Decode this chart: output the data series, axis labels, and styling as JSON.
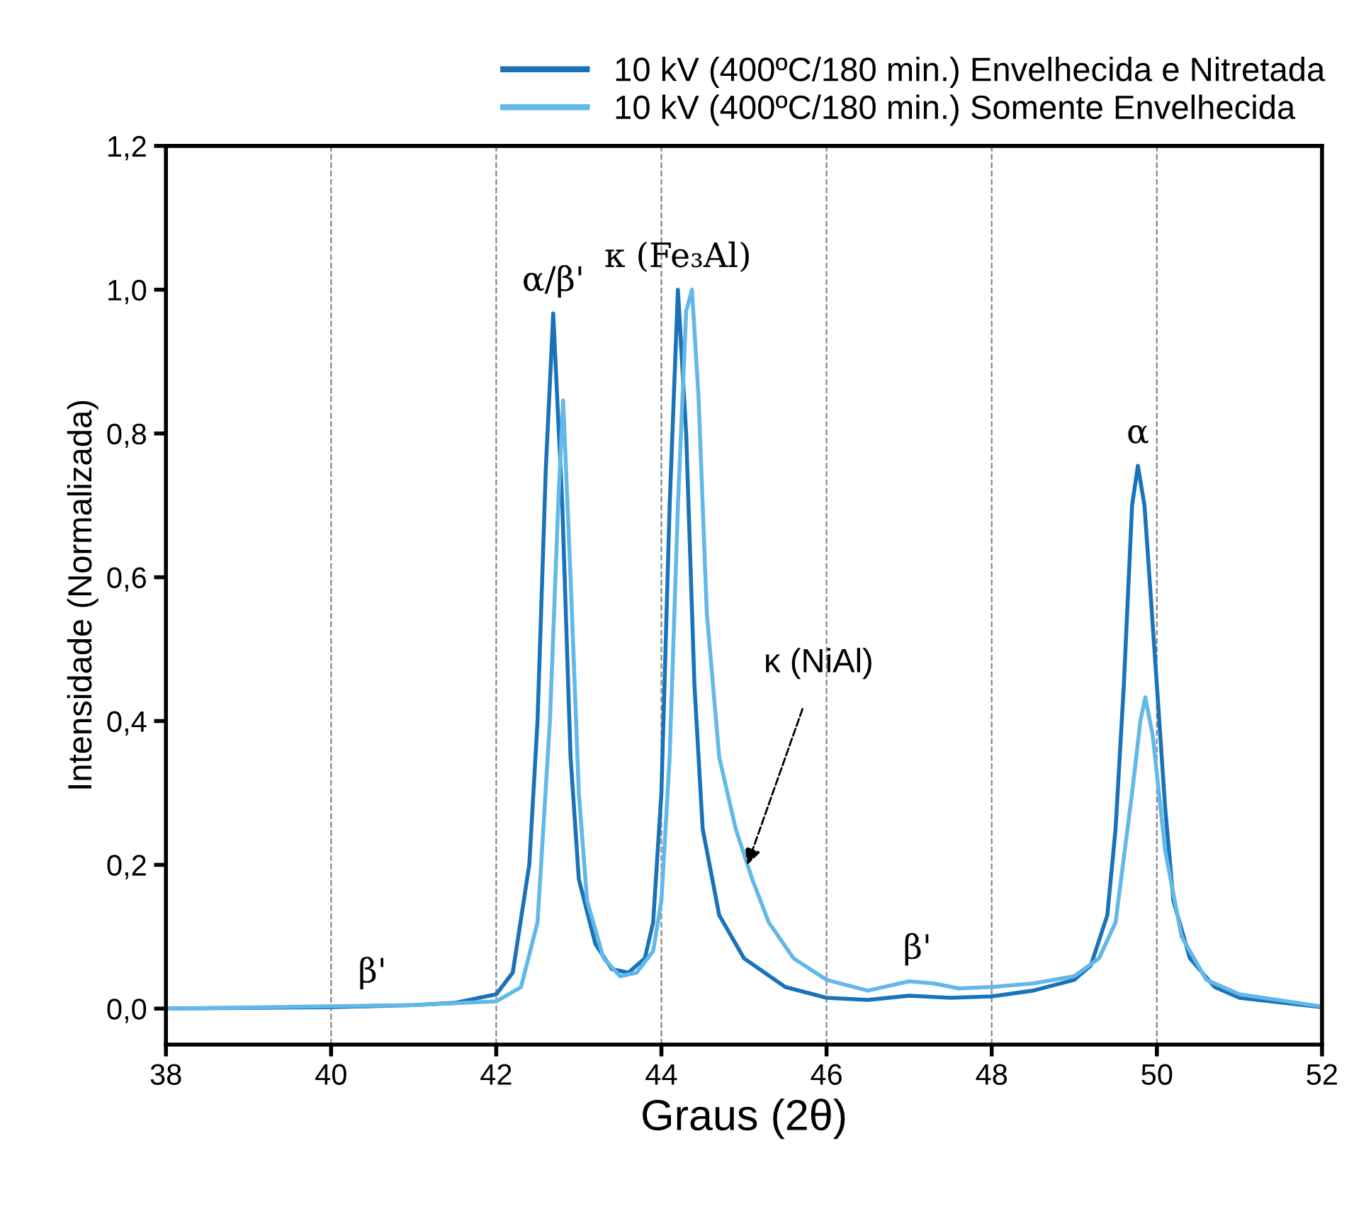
{
  "chart_data": {
    "type": "line",
    "xlabel": "Graus (2θ)",
    "ylabel": "Intensidade (Normalizada)",
    "xlim": [
      38,
      52
    ],
    "xticks": [
      38,
      40,
      42,
      44,
      46,
      48,
      50,
      52
    ],
    "ylim": [
      -0.05,
      1.2
    ],
    "yticks": [
      {
        "value": 0,
        "label": "0,0"
      },
      {
        "value": 0.2,
        "label": "0,2"
      },
      {
        "value": 0.4,
        "label": "0,4"
      },
      {
        "value": 0.6,
        "label": "0,6"
      },
      {
        "value": 0.8,
        "label": "0,8"
      },
      {
        "value": 1.0,
        "label": "1,0"
      },
      {
        "value": 1.2,
        "label": "1,2"
      }
    ],
    "grid": "x",
    "legend": "top right",
    "line_style": "solid",
    "marker": "none",
    "series": [
      {
        "name": "10 kV (400ºC/180 min.) Envelhecida e Nitretada",
        "color": "#1a72b8",
        "x": [
          38,
          40,
          41,
          41.5,
          42,
          42.2,
          42.4,
          42.5,
          42.6,
          42.69,
          42.8,
          42.9,
          43.0,
          43.2,
          43.4,
          43.6,
          43.8,
          43.9,
          44.0,
          44.1,
          44.2,
          44.3,
          44.4,
          44.5,
          44.7,
          45.0,
          45.5,
          46.0,
          46.5,
          47.0,
          47.5,
          48.0,
          48.5,
          49.0,
          49.2,
          49.4,
          49.5,
          49.6,
          49.7,
          49.77,
          49.85,
          50.0,
          50.1,
          50.2,
          50.4,
          50.7,
          51.0,
          52
        ],
        "values": [
          0.0,
          0.002,
          0.005,
          0.008,
          0.02,
          0.05,
          0.2,
          0.4,
          0.75,
          0.967,
          0.7,
          0.35,
          0.18,
          0.09,
          0.055,
          0.05,
          0.07,
          0.12,
          0.3,
          0.7,
          1.0,
          0.8,
          0.45,
          0.25,
          0.13,
          0.07,
          0.03,
          0.015,
          0.012,
          0.018,
          0.015,
          0.017,
          0.025,
          0.04,
          0.06,
          0.13,
          0.25,
          0.45,
          0.7,
          0.755,
          0.7,
          0.45,
          0.28,
          0.15,
          0.07,
          0.03,
          0.015,
          0.002
        ]
      },
      {
        "name": "10 kV (400ºC/180 min.) Somente Envelhecida",
        "color": "#62b8e8",
        "x": [
          38,
          41,
          42,
          42.3,
          42.5,
          42.65,
          42.75,
          42.81,
          42.9,
          43.0,
          43.1,
          43.3,
          43.5,
          43.7,
          43.9,
          44.0,
          44.1,
          44.2,
          44.3,
          44.37,
          44.45,
          44.55,
          44.7,
          44.9,
          45.1,
          45.3,
          45.6,
          46.0,
          46.5,
          47.0,
          47.3,
          47.6,
          48.0,
          48.5,
          49.0,
          49.3,
          49.5,
          49.7,
          49.8,
          49.86,
          49.95,
          50.1,
          50.3,
          50.6,
          51.0,
          52
        ],
        "values": [
          0.0,
          0.005,
          0.01,
          0.03,
          0.12,
          0.4,
          0.7,
          0.846,
          0.6,
          0.3,
          0.15,
          0.07,
          0.045,
          0.05,
          0.08,
          0.15,
          0.35,
          0.7,
          0.97,
          1.0,
          0.85,
          0.55,
          0.35,
          0.25,
          0.18,
          0.12,
          0.07,
          0.04,
          0.025,
          0.038,
          0.035,
          0.028,
          0.03,
          0.035,
          0.045,
          0.07,
          0.12,
          0.3,
          0.4,
          0.433,
          0.38,
          0.22,
          0.1,
          0.04,
          0.02,
          0.003
        ]
      }
    ],
    "annotations": [
      {
        "text": "β'",
        "x": 40.5,
        "y": 0.005
      },
      {
        "text": "α/β'",
        "x": 42.69,
        "y": 0.967
      },
      {
        "text": "κ (Fe₃Al)",
        "x": 44.2,
        "y": 1.0
      },
      {
        "text": "κ (NiAl)",
        "x": 45.04,
        "y": 0.2
      },
      {
        "text": "β'",
        "x": 47.1,
        "y": 0.038
      },
      {
        "text": "α",
        "x": 49.77,
        "y": 0.755
      }
    ]
  }
}
